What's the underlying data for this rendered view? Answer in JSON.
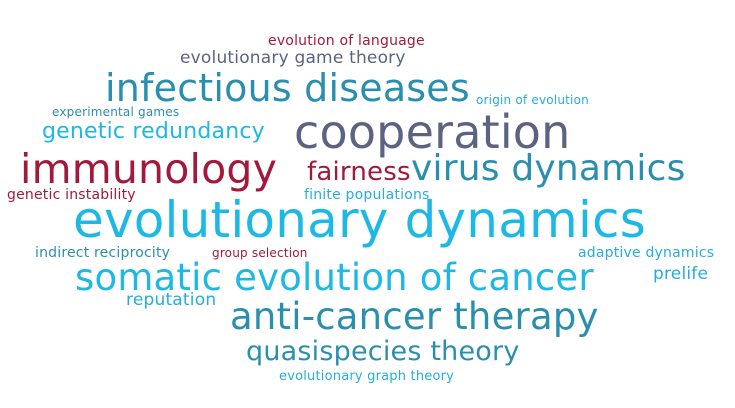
{
  "cloud": {
    "evolution_of_language": "evolution of language",
    "evolutionary_game_theory": "evolutionary game theory",
    "infectious_diseases": "infectious diseases",
    "origin_of_evolution": "origin of evolution",
    "experimental_games": "experimental games",
    "genetic_redundancy": "genetic redundancy",
    "cooperation": "cooperation",
    "immunology": "immunology",
    "fairness": "fairness",
    "virus_dynamics": "virus dynamics",
    "genetic_instability": "genetic instability",
    "finite_populations": "finite populations",
    "evolutionary_dynamics": "evolutionary dynamics",
    "indirect_reciprocity": "indirect reciprocity",
    "group_selection": "group selection",
    "adaptive_dynamics": "adaptive dynamics",
    "somatic_evolution_of_cancer": "somatic evolution of cancer",
    "prelife": "prelife",
    "reputation": "reputation",
    "anti_cancer_therapy": "anti-cancer therapy",
    "quasispecies_theory": "quasispecies theory",
    "evolutionary_graph_theory": "evolutionary graph theory"
  },
  "colors": {
    "crimson": "#a3193b",
    "slate": "#5b6380",
    "cyan": "#1db8e3",
    "teal": "#2a8fae",
    "sky": "#24aedb"
  }
}
